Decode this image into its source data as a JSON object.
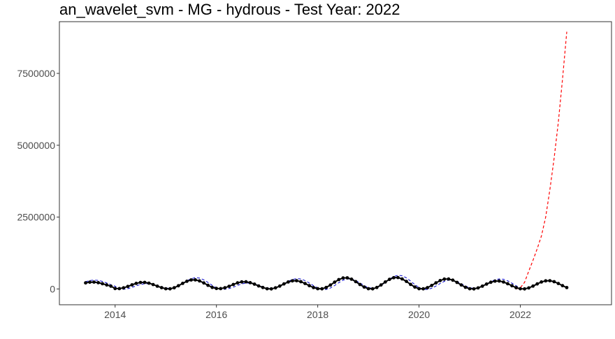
{
  "chart_data": {
    "type": "line",
    "title": "an_wavelet_svm - MG - hydrous - Test Year: 2022",
    "xlabel": "",
    "ylabel": "",
    "x_ticks": [
      {
        "value": 2014,
        "label": "2014"
      },
      {
        "value": 2016,
        "label": "2016"
      },
      {
        "value": 2018,
        "label": "2018"
      },
      {
        "value": 2020,
        "label": "2020"
      },
      {
        "value": 2022,
        "label": "2022"
      }
    ],
    "y_ticks": [
      {
        "value": 0,
        "label": "0"
      },
      {
        "value": 2500000,
        "label": "2500000"
      },
      {
        "value": 5000000,
        "label": "5000000"
      },
      {
        "value": 7500000,
        "label": "7500000"
      }
    ],
    "xlim": [
      2012.9,
      2023.8
    ],
    "ylim": [
      -550000,
      9300000
    ],
    "grid": false,
    "series": [
      {
        "name": "observed",
        "style": "solid-with-points",
        "color": "#000000",
        "start_x": 2013.417,
        "step": 0.08333,
        "amplitude": 1.0,
        "n": 115
      },
      {
        "name": "fitted",
        "style": "dashed",
        "color": "#0000cc",
        "start_x": 2013.417,
        "step": 0.08333,
        "n": 104
      },
      {
        "name": "forecast",
        "style": "dashed",
        "color": "#ff0000",
        "x": [
          2021.917,
          2022.0,
          2022.083,
          2022.167,
          2022.25,
          2022.333,
          2022.417,
          2022.5,
          2022.583,
          2022.667,
          2022.75,
          2022.833,
          2022.917
        ],
        "values": [
          0,
          40000,
          230000,
          620000,
          1000000,
          1400000,
          1850000,
          2500000,
          3450000,
          4550000,
          5800000,
          7300000,
          8950000
        ]
      }
    ],
    "observed_cycle": {
      "comment": "seasonal level per year, in data units",
      "yearly": [
        {
          "year": 2013,
          "low": 70000,
          "high": 240000
        },
        {
          "year": 2014,
          "low": 10000,
          "high": 230000
        },
        {
          "year": 2015,
          "low": 0,
          "high": 320000
        },
        {
          "year": 2016,
          "low": 10000,
          "high": 250000
        },
        {
          "year": 2017,
          "low": 0,
          "high": 290000
        },
        {
          "year": 2018,
          "low": 0,
          "high": 390000
        },
        {
          "year": 2019,
          "low": 0,
          "high": 400000
        },
        {
          "year": 2020,
          "low": 0,
          "high": 350000
        },
        {
          "year": 2021,
          "low": 0,
          "high": 280000
        },
        {
          "year": 2022,
          "low": 0,
          "high": 290000
        }
      ]
    }
  }
}
